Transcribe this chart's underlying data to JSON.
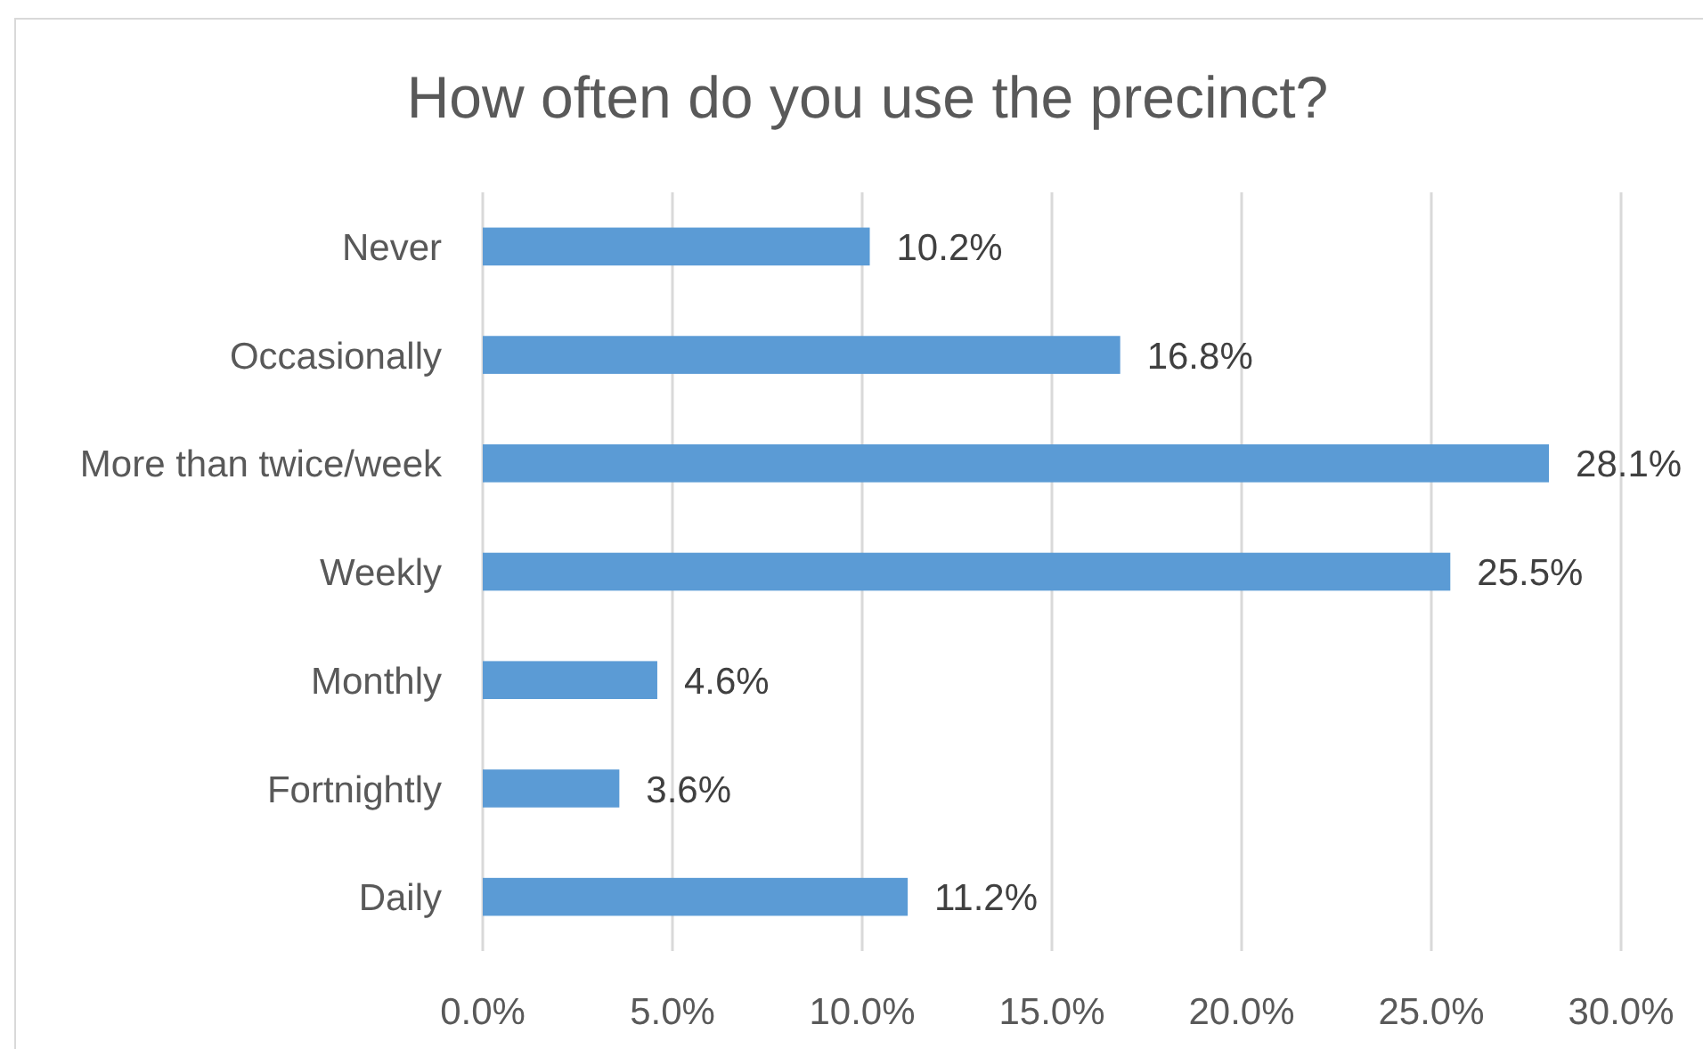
{
  "chart_data": {
    "type": "bar",
    "orientation": "horizontal",
    "title": "How often do you use the precinct?",
    "categories": [
      "Never",
      "Occasionally",
      "More than twice/week",
      "Weekly",
      "Monthly",
      "Fortnightly",
      "Daily"
    ],
    "values": [
      10.2,
      16.8,
      28.1,
      25.5,
      4.6,
      3.6,
      11.2
    ],
    "value_labels": [
      "10.2%",
      "16.8%",
      "28.1%",
      "25.5%",
      "4.6%",
      "3.6%",
      "11.2%"
    ],
    "color": "#5b9bd5",
    "xlim": [
      0,
      30
    ],
    "xticks": [
      {
        "value": 0,
        "label": "0.0%"
      },
      {
        "value": 5,
        "label": "5.0%"
      },
      {
        "value": 10,
        "label": "10.0%"
      },
      {
        "value": 15,
        "label": "15.0%"
      },
      {
        "value": 20,
        "label": "20.0%"
      },
      {
        "value": 25,
        "label": "25.0%"
      },
      {
        "value": 30,
        "label": "30.0%"
      }
    ],
    "grid": "x"
  }
}
